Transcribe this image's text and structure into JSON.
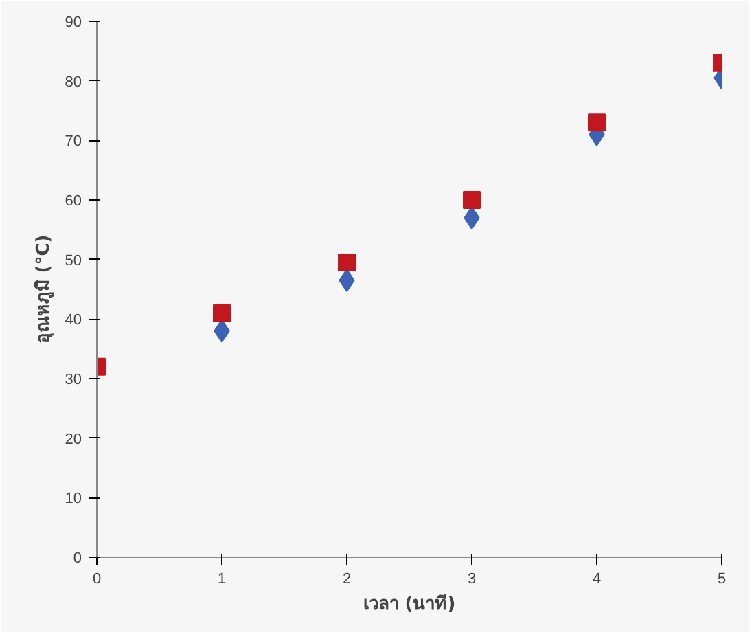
{
  "chart_data": {
    "type": "scatter",
    "xlabel": "เวลา (นาที)",
    "ylabel": "อุณหภูมิ (°C)",
    "x": [
      0,
      1,
      2,
      3,
      4,
      5
    ],
    "series": [
      {
        "color": "#3b62b4",
        "marker": "diamond",
        "values": [
          null,
          38,
          46.5,
          57,
          71,
          80.5
        ]
      },
      {
        "color": "#c0181e",
        "marker": "square",
        "values": [
          32,
          41,
          49.5,
          60,
          73,
          83
        ]
      }
    ],
    "xlim": [
      0,
      5
    ],
    "xticks": [
      0,
      1,
      2,
      3,
      4,
      5
    ],
    "ylim": [
      0,
      90
    ],
    "yticks": [
      0,
      10,
      20,
      30,
      40,
      50,
      60,
      70,
      80,
      90
    ]
  }
}
